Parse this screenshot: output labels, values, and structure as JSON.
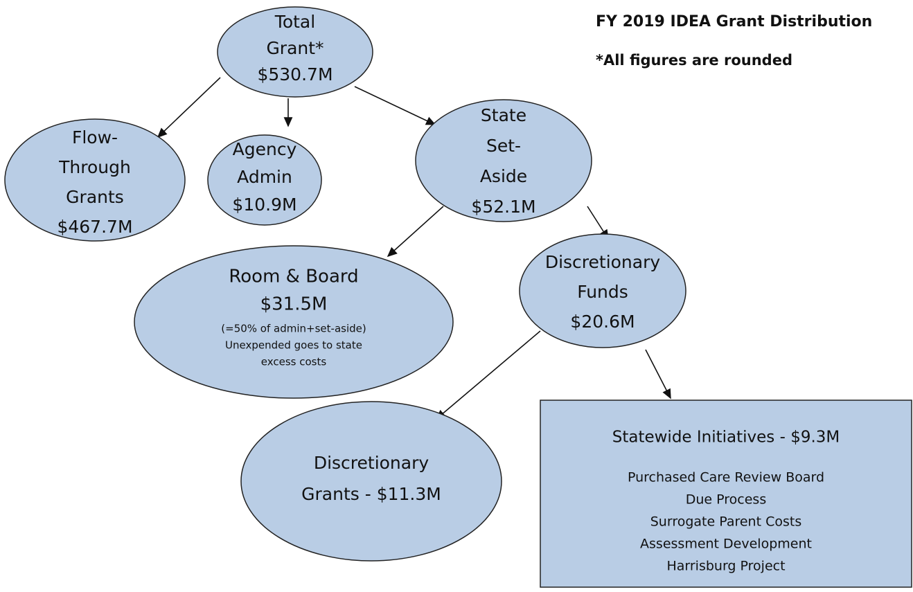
{
  "title": "FY 2019 IDEA Grant Distribution",
  "note": "*All figures are rounded",
  "nodes": [
    {
      "lines": [
        "Total",
        "Grant*",
        "$530.7M"
      ]
    },
    {
      "lines": [
        "Flow-",
        "Through",
        "Grants",
        "$467.7M"
      ]
    },
    {
      "lines": [
        "Agency",
        "Admin",
        "$10.9M"
      ]
    },
    {
      "lines": [
        "State",
        "Set-",
        "Aside",
        "$52.1M"
      ]
    },
    {
      "lines": [
        "Room & Board",
        "$31.5M"
      ],
      "details": [
        "(=50% of admin+set-aside)",
        "Unexpended goes to state",
        "excess costs"
      ]
    },
    {
      "lines": [
        "Discretionary",
        "Funds",
        "$20.6M"
      ]
    },
    {
      "lines": [
        "Discretionary",
        "Grants - $11.3M"
      ]
    },
    {
      "lines": [
        "Statewide Initiatives - $9.3M"
      ],
      "details": [
        "Purchased Care Review Board",
        "Due Process",
        "Surrogate Parent Costs",
        "Assessment Development",
        "Harrisburg Project"
      ]
    }
  ]
}
